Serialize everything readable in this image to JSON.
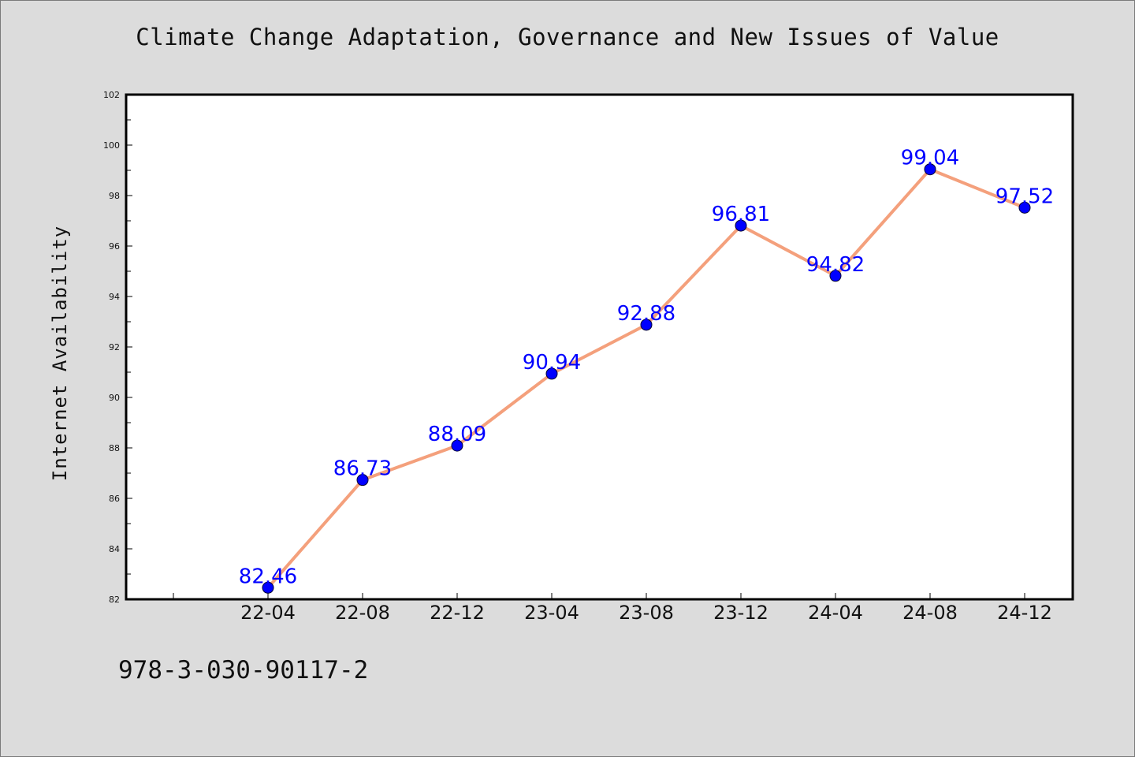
{
  "footer_text": "978-3-030-90117-2",
  "chart_data": {
    "type": "line",
    "title": "Climate Change Adaptation, Governance and New Issues of Value",
    "xlabel": "",
    "ylabel": "Internet Availability",
    "categories": [
      "22-04",
      "22-08",
      "22-12",
      "23-04",
      "23-08",
      "23-12",
      "24-04",
      "24-08",
      "24-12"
    ],
    "series": [
      {
        "values": [
          82.46,
          86.73,
          88.09,
          90.94,
          92.88,
          96.81,
          94.82,
          99.04,
          97.52
        ],
        "data_labels": [
          "82.46",
          "86.73",
          "88.09",
          "90.94",
          "92.88",
          "96.81",
          "94.82",
          "99.04",
          "97.52"
        ]
      }
    ],
    "ylim": [
      82,
      102
    ],
    "yticks": [
      "82",
      "84",
      "86",
      "88",
      "90",
      "92",
      "94",
      "96",
      "98",
      "100",
      "102"
    ],
    "grid": false,
    "legend": "none",
    "colors": {
      "line": "#f4a07c",
      "marker": "#0000ff",
      "marker_edge": "#000033",
      "data_label": "#0000ff",
      "background": "#dcdcdc",
      "plot_area": "#ffffff"
    }
  }
}
